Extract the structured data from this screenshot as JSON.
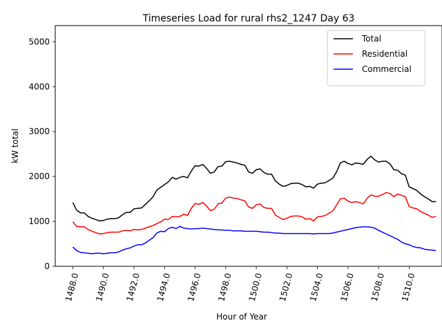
{
  "chart_data": {
    "type": "line",
    "title": "Timeseries Load for rural rhs2_1247  Day 63",
    "xlabel": "Hour of Year",
    "ylabel": "kW total",
    "xlim": [
      1486.85,
      1512.15
    ],
    "ylim": [
      0,
      5360
    ],
    "x_ticks": [
      1488,
      1490,
      1492,
      1494,
      1496,
      1498,
      1500,
      1502,
      1504,
      1506,
      1508,
      1510
    ],
    "x_tick_labels": [
      "1488.0",
      "1490.0",
      "1492.0",
      "1494.0",
      "1496.0",
      "1498.0",
      "1500.0",
      "1502.0",
      "1504.0",
      "1506.0",
      "1508.0",
      "1510.0"
    ],
    "y_ticks": [
      0,
      1000,
      2000,
      3000,
      4000,
      5000
    ],
    "y_tick_labels": [
      "0",
      "1000",
      "2000",
      "3000",
      "4000",
      "5000"
    ],
    "legend_position": "top-right",
    "x_start": 1488,
    "x_step": 0.25,
    "series": [
      {
        "name": "Total",
        "color": "#000000",
        "values": [
          1420,
          1250,
          1190,
          1190,
          1110,
          1070,
          1040,
          1010,
          1020,
          1050,
          1060,
          1060,
          1080,
          1150,
          1200,
          1200,
          1280,
          1290,
          1300,
          1380,
          1460,
          1550,
          1700,
          1760,
          1820,
          1880,
          1980,
          1940,
          1980,
          2000,
          1970,
          2120,
          2240,
          2230,
          2270,
          2180,
          2070,
          2100,
          2220,
          2230,
          2330,
          2340,
          2320,
          2300,
          2270,
          2250,
          2100,
          2070,
          2150,
          2170,
          2090,
          2050,
          2050,
          1900,
          1830,
          1780,
          1800,
          1840,
          1850,
          1850,
          1820,
          1770,
          1780,
          1740,
          1830,
          1850,
          1860,
          1910,
          1960,
          2100,
          2300,
          2340,
          2290,
          2260,
          2300,
          2290,
          2270,
          2380,
          2450,
          2370,
          2320,
          2340,
          2340,
          2280,
          2150,
          2140,
          2060,
          2030,
          1770,
          1730,
          1690,
          1610,
          1550,
          1500,
          1440,
          1440
        ]
      },
      {
        "name": "Residential",
        "color": "#ff0000",
        "values": [
          990,
          890,
          880,
          880,
          820,
          780,
          750,
          720,
          730,
          750,
          760,
          760,
          760,
          790,
          800,
          790,
          820,
          810,
          820,
          850,
          880,
          910,
          950,
          990,
          1050,
          1040,
          1110,
          1100,
          1110,
          1160,
          1130,
          1290,
          1400,
          1380,
          1420,
          1340,
          1240,
          1270,
          1390,
          1410,
          1520,
          1540,
          1520,
          1510,
          1480,
          1460,
          1320,
          1290,
          1370,
          1390,
          1310,
          1290,
          1290,
          1140,
          1090,
          1040,
          1070,
          1110,
          1120,
          1120,
          1100,
          1050,
          1060,
          1010,
          1100,
          1110,
          1130,
          1180,
          1230,
          1360,
          1500,
          1520,
          1450,
          1420,
          1440,
          1420,
          1390,
          1510,
          1590,
          1560,
          1560,
          1600,
          1640,
          1620,
          1550,
          1610,
          1580,
          1550,
          1330,
          1300,
          1280,
          1220,
          1180,
          1140,
          1090,
          1110
        ]
      },
      {
        "name": "Commercial",
        "color": "#0000ff",
        "values": [
          430,
          350,
          310,
          300,
          290,
          280,
          290,
          290,
          280,
          290,
          300,
          300,
          320,
          360,
          390,
          410,
          450,
          480,
          480,
          520,
          580,
          640,
          740,
          780,
          770,
          840,
          870,
          840,
          890,
          850,
          840,
          830,
          840,
          840,
          850,
          840,
          830,
          820,
          810,
          810,
          800,
          800,
          790,
          790,
          790,
          780,
          780,
          780,
          780,
          770,
          760,
          760,
          750,
          740,
          740,
          730,
          730,
          730,
          730,
          730,
          730,
          730,
          730,
          720,
          730,
          730,
          730,
          730,
          740,
          760,
          780,
          800,
          820,
          840,
          860,
          870,
          880,
          880,
          870,
          850,
          800,
          760,
          720,
          680,
          640,
          600,
          540,
          500,
          480,
          440,
          420,
          410,
          380,
          370,
          360,
          350
        ]
      }
    ]
  }
}
